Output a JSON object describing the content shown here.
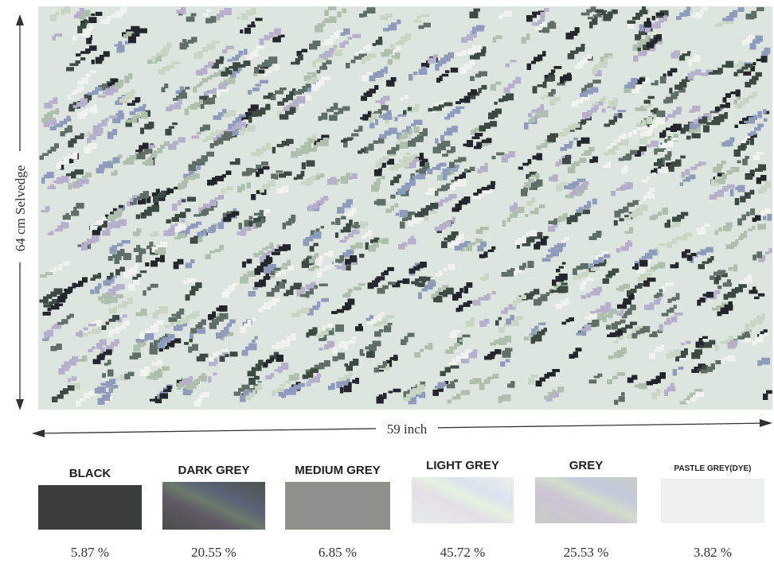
{
  "figure": {
    "height_label": "64 cm Selvedge",
    "width_label": "59 inch",
    "swatches": [
      {
        "name": "BLACK",
        "percent": "5.87 %"
      },
      {
        "name": "DARK GREY",
        "percent": "20.55 %"
      },
      {
        "name": "MEDIUM GREY",
        "percent": "6.85 %"
      },
      {
        "name": "LIGHT GREY",
        "percent": "45.72 %"
      },
      {
        "name": "GREY",
        "percent": "25.53 %"
      },
      {
        "name": "PASTLE GREY(DYE)",
        "percent": "3.82 %"
      }
    ]
  }
}
